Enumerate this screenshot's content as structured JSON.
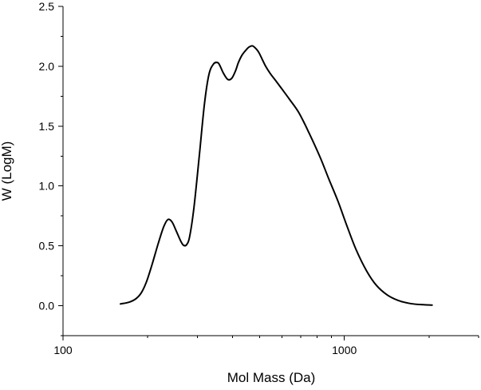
{
  "chart_data": {
    "type": "line",
    "xlabel": "Mol Mass (Da)",
    "ylabel": "W (LogM)",
    "xscale": "log",
    "xlim": [
      100,
      3000
    ],
    "ylim": [
      -0.25,
      2.5
    ],
    "xticks": [
      {
        "value": 100,
        "label": "100"
      },
      {
        "value": 1000,
        "label": "1000"
      }
    ],
    "yticks": [
      {
        "value": 0.0,
        "label": "0.0"
      },
      {
        "value": 0.5,
        "label": "0.5"
      },
      {
        "value": 1.0,
        "label": "1.0"
      },
      {
        "value": 1.5,
        "label": "1.5"
      },
      {
        "value": 2.0,
        "label": "2.0"
      },
      {
        "value": 2.5,
        "label": "2.5"
      }
    ],
    "grid": false,
    "series": [
      {
        "color": "#000000",
        "x": [
          160,
          172,
          182,
          190,
          198,
          207,
          218,
          228,
          236,
          244,
          252,
          262,
          268,
          275,
          282,
          292,
          305,
          318,
          330,
          343,
          355,
          362,
          372,
          385,
          398,
          410,
          420,
          432,
          445,
          458,
          472,
          488,
          498,
          510,
          525,
          545,
          570,
          600,
          640,
          690,
          750,
          820,
          880,
          950,
          1020,
          1100,
          1200,
          1300,
          1420,
          1550,
          1700,
          1850,
          2050
        ],
        "y": [
          0.015,
          0.03,
          0.06,
          0.11,
          0.2,
          0.34,
          0.52,
          0.66,
          0.72,
          0.7,
          0.63,
          0.54,
          0.505,
          0.51,
          0.58,
          0.82,
          1.25,
          1.68,
          1.93,
          2.02,
          2.03,
          2.0,
          1.94,
          1.89,
          1.9,
          1.96,
          2.03,
          2.09,
          2.13,
          2.16,
          2.17,
          2.14,
          2.11,
          2.06,
          2.0,
          1.94,
          1.88,
          1.81,
          1.72,
          1.61,
          1.44,
          1.24,
          1.06,
          0.87,
          0.67,
          0.47,
          0.29,
          0.17,
          0.09,
          0.045,
          0.02,
          0.01,
          0.005
        ]
      }
    ]
  }
}
